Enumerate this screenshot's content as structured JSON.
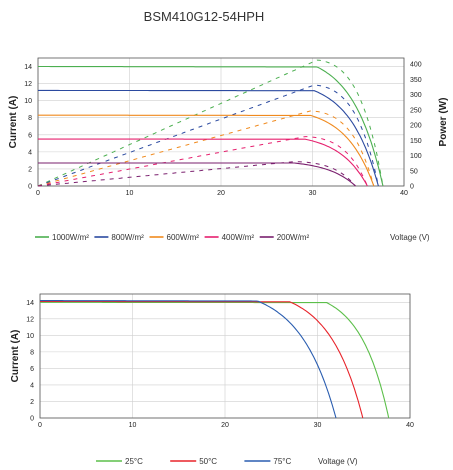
{
  "chart_data": [
    {
      "type": "line",
      "title": "BSM410G12-54HPH",
      "xlabel": "Voltage (V)",
      "ylabel": "Current (A)",
      "y2label": "Power (W)",
      "xlim": [
        0,
        40
      ],
      "ylim": [
        0,
        15
      ],
      "y2lim": [
        0,
        420
      ],
      "xticks": [
        0,
        10,
        20,
        30,
        40
      ],
      "yticks": [
        0,
        2,
        4,
        6,
        8,
        10,
        12,
        14
      ],
      "y2ticks": [
        0,
        50,
        100,
        150,
        200,
        250,
        300,
        350,
        400
      ],
      "grid": true,
      "legend_position": "bottom",
      "series": [
        {
          "name": "1000W/m²",
          "color": "#4caf50",
          "isc": 14.0,
          "voc": 37.7,
          "vk": 30.5,
          "pmax": 410,
          "vmp": 31.2
        },
        {
          "name": "800W/m²",
          "color": "#2b4aa0",
          "isc": 11.2,
          "voc": 37.2,
          "vk": 30.2,
          "pmax": 328,
          "vmp": 31.0
        },
        {
          "name": "600W/m²",
          "color": "#f08a1e",
          "isc": 8.3,
          "voc": 36.7,
          "vk": 29.8,
          "pmax": 244,
          "vmp": 30.6
        },
        {
          "name": "400W/m²",
          "color": "#e6206e",
          "isc": 5.5,
          "voc": 36.0,
          "vk": 29.2,
          "pmax": 160,
          "vmp": 30.1
        },
        {
          "name": "200W/m²",
          "color": "#7a1f6e",
          "isc": 2.7,
          "voc": 34.7,
          "vk": 28.0,
          "pmax": 78,
          "vmp": 29.3
        }
      ]
    },
    {
      "type": "line",
      "title": "",
      "xlabel": "Voltage (V)",
      "ylabel": "Current (A)",
      "xlim": [
        0,
        40
      ],
      "ylim": [
        0,
        15
      ],
      "xticks": [
        0,
        10,
        20,
        30,
        40
      ],
      "yticks": [
        0,
        2,
        4,
        6,
        8,
        10,
        12,
        14
      ],
      "grid": true,
      "legend_position": "bottom",
      "series": [
        {
          "name": "25°C",
          "color": "#5cbf4a",
          "isc": 14.0,
          "voc": 37.7,
          "vk": 31.0
        },
        {
          "name": "50°C",
          "color": "#e8232a",
          "isc": 14.1,
          "voc": 34.9,
          "vk": 27.0
        },
        {
          "name": "75°C",
          "color": "#2a5db0",
          "isc": 14.2,
          "voc": 32.0,
          "vk": 23.5
        }
      ]
    }
  ]
}
